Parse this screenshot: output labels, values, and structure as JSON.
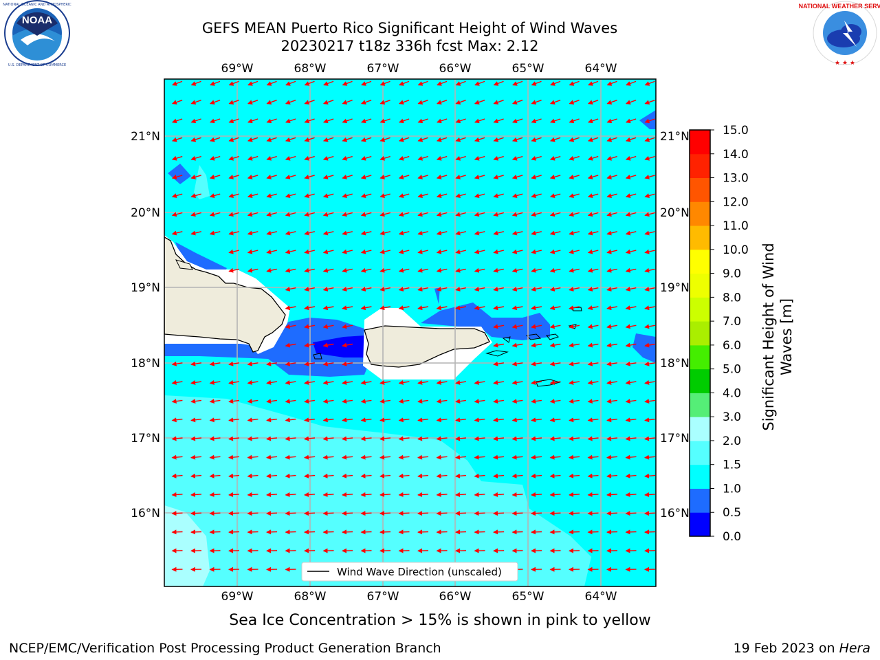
{
  "header": {
    "title_line1": "GEFS MEAN Puerto Rico Significant Height of Wind Waves",
    "title_line2": "20230217 t18z 336h fcst   Max: 2.12"
  },
  "logos": {
    "left": {
      "icon": "noaa-logo",
      "text": "NOAA",
      "ring_text": "NATIONAL OCEANIC AND ATMOSPHERIC ADMINISTRATION · U.S. DEPARTMENT OF COMMERCE"
    },
    "right": {
      "icon": "nws-logo",
      "ring_text": "NATIONAL WEATHER SERVICE"
    }
  },
  "map": {
    "lon_labels": [
      "69°W",
      "68°W",
      "67°W",
      "66°W",
      "65°W",
      "64°W"
    ],
    "lat_labels": [
      "21°N",
      "20°N",
      "19°N",
      "18°N",
      "17°N",
      "16°N"
    ],
    "legend_label": "Wind Wave Direction (unscaled)",
    "arrow_color": "#ff0000",
    "land_color": "#efecdc"
  },
  "colorbar": {
    "label_line1": "Significant Height of Wind",
    "label_line2": "Waves [m]",
    "ticks": [
      "0.0",
      "0.5",
      "1.0",
      "1.5",
      "2.0",
      "3.0",
      "4.0",
      "5.0",
      "6.0",
      "7.0",
      "8.0",
      "9.0",
      "10.0",
      "11.0",
      "12.0",
      "13.0",
      "14.0",
      "15.0"
    ],
    "colors": [
      "#0000ff",
      "#1e6cff",
      "#00ffff",
      "#55ffff",
      "#aaffff",
      "#55ee77",
      "#00cc00",
      "#44ee00",
      "#aaee00",
      "#ccff00",
      "#eeff00",
      "#ffff00",
      "#ffbb00",
      "#ff8800",
      "#ff5500",
      "#ff2200",
      "#ff0000"
    ]
  },
  "footer": {
    "caption": "Sea Ice Concentration > 15% is shown in pink to yellow",
    "credit": "NCEP/EMC/Verification Post Processing Product Generation Branch",
    "date": "19 Feb 2023 on ",
    "machine": "Hera"
  }
}
